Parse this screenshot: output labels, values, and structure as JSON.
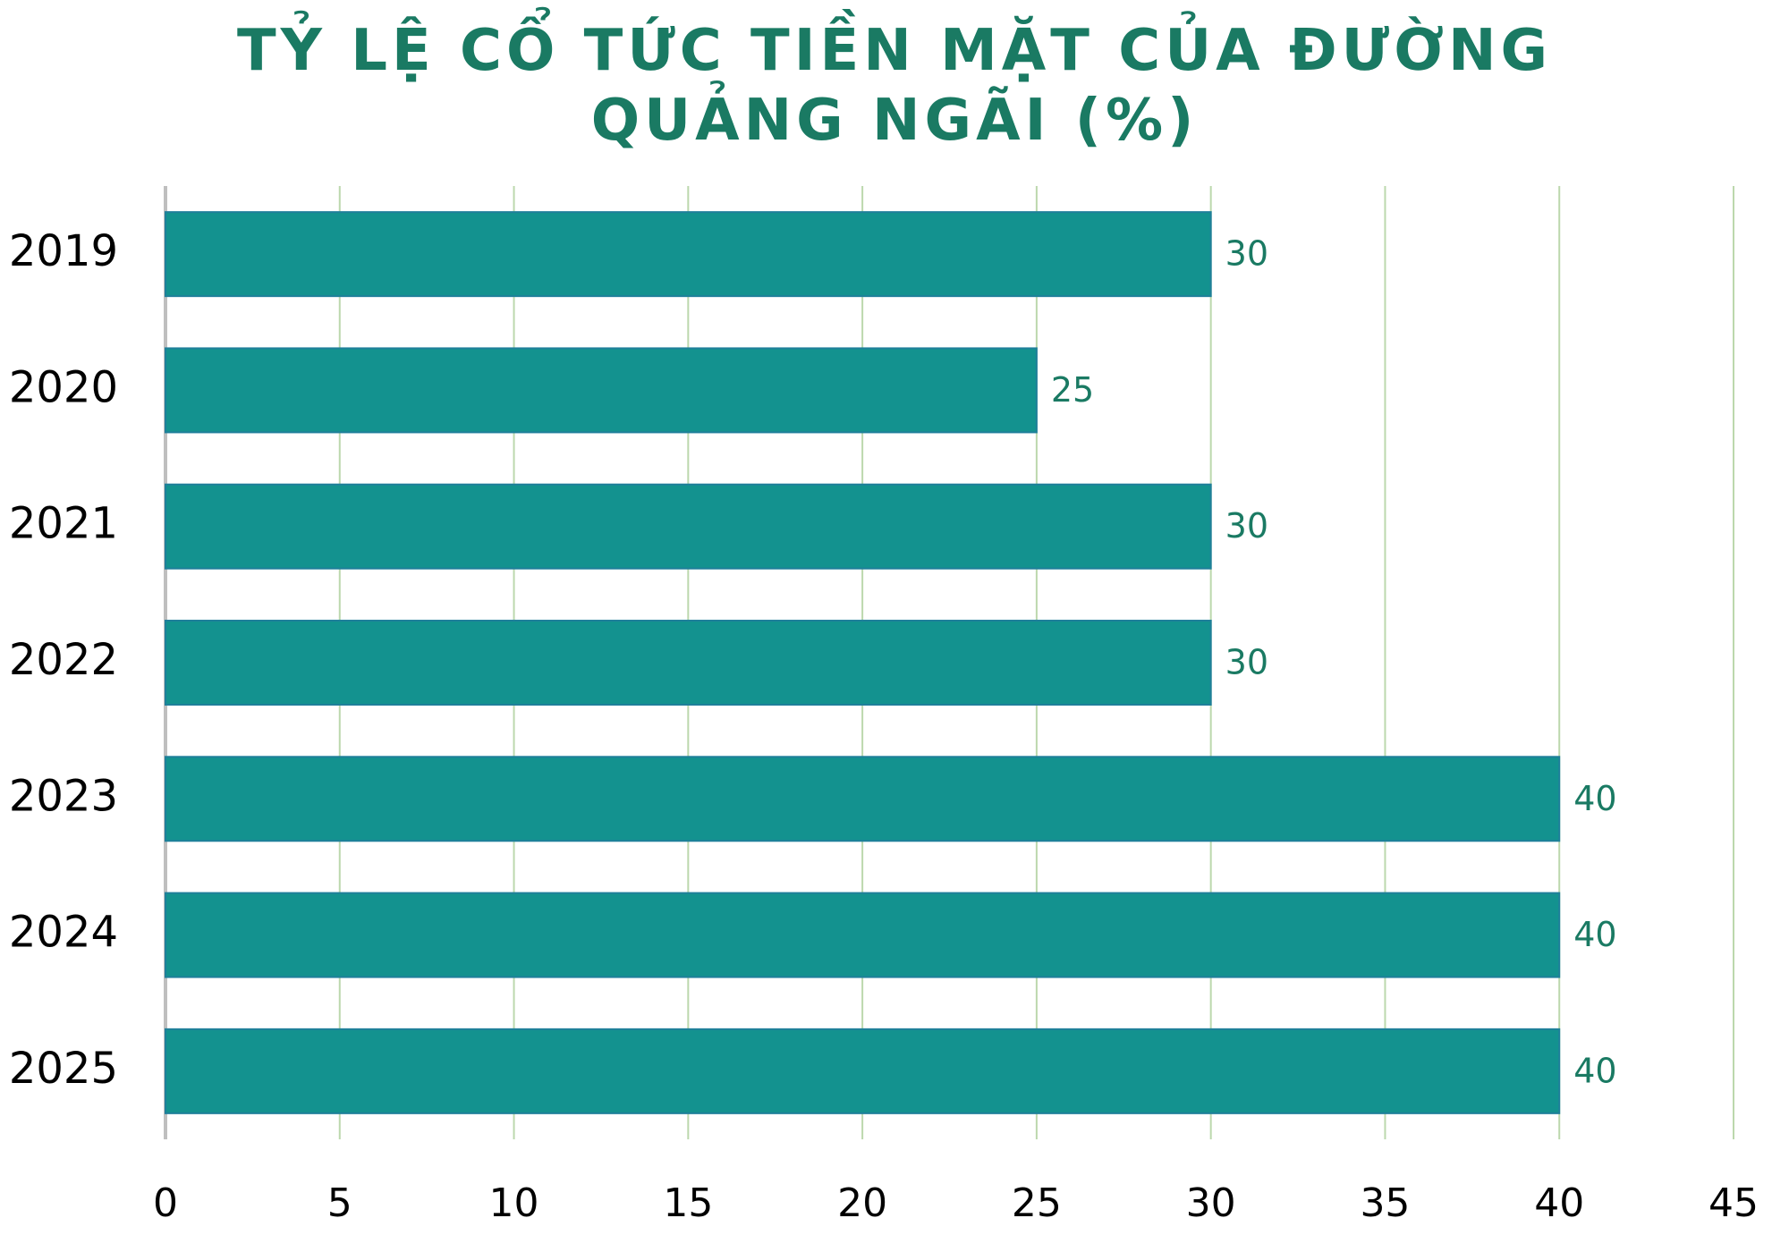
{
  "chart_data": {
    "type": "bar",
    "orientation": "horizontal",
    "title": "TỶ LỆ CỔ TỨC TIỀN MẶT CỦA ĐƯỜNG QUẢNG NGÃI (%)",
    "categories": [
      "2019",
      "2020",
      "2021",
      "2022",
      "2023",
      "2024",
      "2025"
    ],
    "values": [
      30,
      25,
      30,
      30,
      40,
      40,
      40
    ],
    "color": "#13928f",
    "xlim": [
      0,
      45
    ],
    "xticks": [
      0,
      5,
      10,
      15,
      20,
      25,
      30,
      35,
      40,
      45
    ],
    "grid": true
  }
}
